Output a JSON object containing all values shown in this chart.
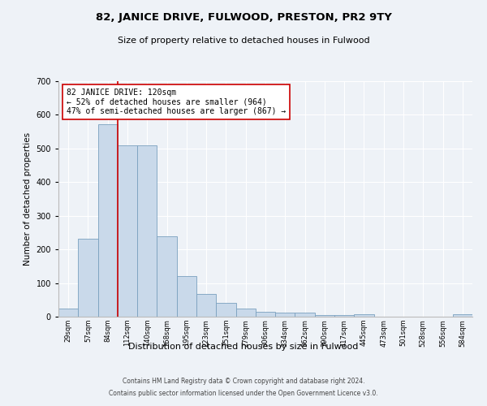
{
  "title": "82, JANICE DRIVE, FULWOOD, PRESTON, PR2 9TY",
  "subtitle": "Size of property relative to detached houses in Fulwood",
  "xlabel": "Distribution of detached houses by size in Fulwood",
  "ylabel": "Number of detached properties",
  "categories": [
    "29sqm",
    "57sqm",
    "84sqm",
    "112sqm",
    "140sqm",
    "168sqm",
    "195sqm",
    "223sqm",
    "251sqm",
    "279sqm",
    "306sqm",
    "334sqm",
    "362sqm",
    "390sqm",
    "417sqm",
    "445sqm",
    "473sqm",
    "501sqm",
    "528sqm",
    "556sqm",
    "584sqm"
  ],
  "values": [
    25,
    232,
    571,
    510,
    510,
    238,
    120,
    68,
    40,
    25,
    14,
    11,
    11,
    5,
    5,
    8,
    0,
    0,
    0,
    0,
    7
  ],
  "bar_color": "#c9d9ea",
  "bar_edge_color": "#7aa0be",
  "vline_x": 2.5,
  "annotation_text": "82 JANICE DRIVE: 120sqm\n← 52% of detached houses are smaller (964)\n47% of semi-detached houses are larger (867) →",
  "annotation_box_color": "#ffffff",
  "annotation_box_edge": "#cc0000",
  "vline_color": "#cc0000",
  "background_color": "#eef2f7",
  "footer_line1": "Contains HM Land Registry data © Crown copyright and database right 2024.",
  "footer_line2": "Contains public sector information licensed under the Open Government Licence v3.0.",
  "ylim": [
    0,
    700
  ],
  "yticks": [
    0,
    100,
    200,
    300,
    400,
    500,
    600,
    700
  ]
}
